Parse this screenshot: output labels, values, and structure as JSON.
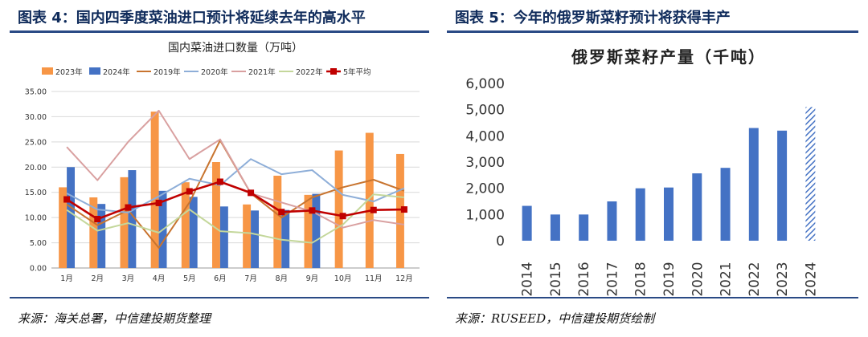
{
  "left_figure": {
    "title": "图表 4：国内四季度菜油进口预计将延续去年的高水平",
    "source": "来源：海关总署，中信建投期货整理"
  },
  "right_figure": {
    "title": "图表 5：今年的俄罗斯菜籽预计将获得丰产",
    "source": "来源：RUSEED，中信建投期货绘制"
  },
  "chart_data": [
    {
      "type": "bar",
      "title": "国内菜油进口数量（万吨）",
      "categories": [
        "1月",
        "2月",
        "3月",
        "4月",
        "5月",
        "6月",
        "7月",
        "8月",
        "9月",
        "10月",
        "11月",
        "12月"
      ],
      "ylim": [
        0,
        35
      ],
      "y_ticks": [
        "0.00",
        "5.00",
        "10.00",
        "15.00",
        "20.00",
        "25.00",
        "30.00",
        "35.00"
      ],
      "grid": true,
      "legend_position": "top",
      "bar_series": [
        {
          "name": "2023年",
          "color": "#f79646",
          "values": [
            16.0,
            14.0,
            18.0,
            31.0,
            17.0,
            21.0,
            12.6,
            18.3,
            14.5,
            23.3,
            26.8,
            22.6
          ]
        },
        {
          "name": "2024年",
          "color": "#4472c4",
          "values": [
            20.0,
            12.7,
            19.4,
            15.3,
            14.1,
            12.2,
            11.4,
            11.5,
            14.7,
            null,
            null,
            null
          ]
        }
      ],
      "line_series": [
        {
          "name": "2019年",
          "color": "#c8742f",
          "values": [
            12.6,
            8.5,
            11.5,
            4.0,
            13.0,
            25.3,
            14.8,
            10.0,
            14.0,
            16.0,
            17.5,
            15.3
          ]
        },
        {
          "name": "2020年",
          "color": "#8eaed8",
          "values": [
            14.8,
            11.6,
            11.0,
            14.2,
            17.7,
            16.4,
            21.6,
            18.6,
            19.4,
            14.5,
            13.2,
            15.8
          ]
        },
        {
          "name": "2021年",
          "color": "#d9a0a0",
          "values": [
            24.0,
            17.4,
            25.0,
            31.2,
            21.6,
            25.5,
            14.8,
            13.0,
            11.2,
            8.0,
            9.5,
            8.6
          ]
        },
        {
          "name": "2022年",
          "color": "#c4d79b",
          "values": [
            11.5,
            7.4,
            8.9,
            7.0,
            11.6,
            7.3,
            6.9,
            5.6,
            5.0,
            8.6,
            14.6,
            14.0
          ]
        },
        {
          "name": "5年平均",
          "color": "#c00000",
          "marker": "square",
          "values": [
            13.6,
            9.7,
            12.0,
            12.9,
            15.2,
            17.1,
            14.9,
            11.1,
            11.4,
            10.3,
            11.5,
            11.6
          ]
        }
      ]
    },
    {
      "type": "bar",
      "title": "俄罗斯菜籽产量（千吨）",
      "categories": [
        "2014",
        "2015",
        "2016",
        "2017",
        "2018",
        "2019",
        "2020",
        "2021",
        "2022",
        "2023",
        "2024"
      ],
      "values": [
        1330,
        1000,
        1000,
        1500,
        2000,
        2030,
        2570,
        2780,
        4300,
        4200,
        5100
      ],
      "estimate_categories": [
        "2024"
      ],
      "ylim": [
        0,
        6000
      ],
      "y_ticks": [
        "0",
        "1,000",
        "2,000",
        "3,000",
        "4,000",
        "5,000",
        "6,000"
      ],
      "grid": false,
      "color": "#4472c4"
    }
  ]
}
